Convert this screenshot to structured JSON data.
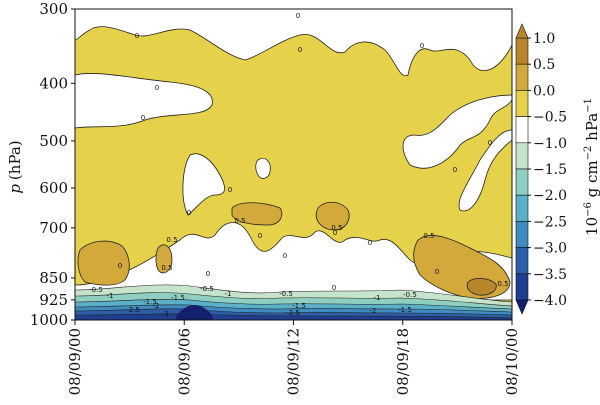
{
  "chart_data": {
    "type": "heatmap",
    "subtype": "filled-contour",
    "ylabel_var": "p",
    "ylabel_unit": "(hPa)",
    "x_ticks": [
      "08/09/00",
      "08/09/06",
      "08/09/12",
      "08/09/18",
      "08/10/00"
    ],
    "y_ticks": [
      "300",
      "400",
      "500",
      "600",
      "700",
      "850",
      "925",
      "1000"
    ],
    "y_scale": "log-pressure",
    "y_range": [
      1000,
      300
    ],
    "colorbar": {
      "label_prefix": "10",
      "label_exp1": "−6",
      "label_mid": " g cm",
      "label_exp2": "−2",
      "label_mid2": " hPa",
      "label_exp3": "−1",
      "ticks": [
        "1.0",
        "0.5",
        "0.0",
        "−0.5",
        "−1.0",
        "−1.5",
        "−2.0",
        "−2.5",
        "−3.0",
        "−3.5",
        "−4.0"
      ],
      "levels": [
        1.0,
        0.5,
        0.0,
        -0.5,
        -1.0,
        -1.5,
        -2.0,
        -2.5,
        -3.0,
        -3.5,
        -4.0
      ],
      "colors": [
        "#b8862a",
        "#d4a93c",
        "#e5d24a",
        "#ffffff",
        "#c6e3cc",
        "#8fcfc1",
        "#5ab0c8",
        "#3f8cc0",
        "#2d5fa8",
        "#1f3e8f",
        "#14206e"
      ]
    },
    "contour_labels": [
      "0",
      "0",
      "0",
      "0",
      "0",
      "0",
      "0",
      "0",
      "0",
      "0",
      "0",
      "0",
      "0",
      "0",
      "0",
      "0",
      "0",
      "0",
      "0.5",
      "0.5",
      "0.5",
      "0.5",
      "0.5",
      "0.5",
      "-0.5",
      "-0.5",
      "-0.5",
      "-0.5",
      "-1",
      "-1",
      "-1",
      "-1.5",
      "-1.5",
      "-1.5",
      "-1.5",
      "-2",
      "-2",
      "-2.5",
      "-2.5",
      "-3"
    ],
    "colors": {
      "zero_to_half": "#e5d24a",
      "half_to_one": "#d4a93c",
      "above_one": "#b8862a",
      "negative_half": "#ffffff",
      "deep_negative": "#14206e"
    }
  }
}
